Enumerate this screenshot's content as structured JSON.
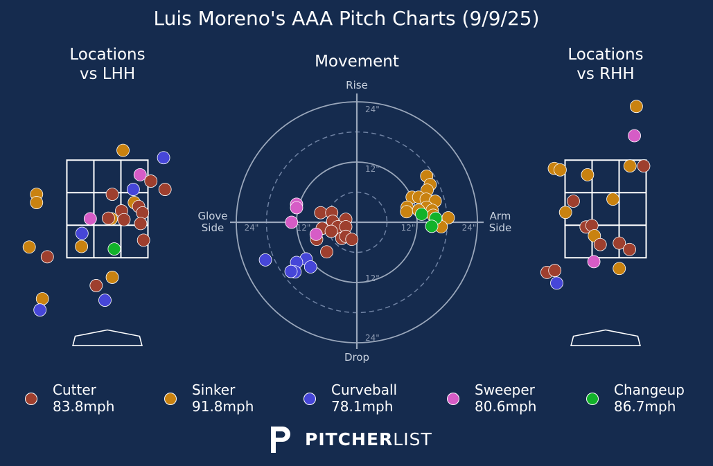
{
  "title": "Luis Moreno's AAA Pitch Charts (9/9/25)",
  "panels": {
    "lhh_title": "Locations\nvs LHH",
    "movement_title": "Movement",
    "rhh_title": "Locations\nvs RHH"
  },
  "movement_axes": {
    "top": "Rise",
    "bottom": "Drop",
    "left": "Glove\nSide",
    "right": "Arm\nSide",
    "ring_ticks": [
      "12\"",
      "24\""
    ]
  },
  "colors": {
    "background": "#152b4e",
    "Cutter": "#9e3f2e",
    "Sinker": "#c98210",
    "Curveball": "#4646d8",
    "Sweeper": "#d65cc6",
    "Changeup": "#12b22a"
  },
  "legend": [
    {
      "pitch": "Cutter",
      "velo": "83.8mph"
    },
    {
      "pitch": "Sinker",
      "velo": "91.8mph"
    },
    {
      "pitch": "Curveball",
      "velo": "78.1mph"
    },
    {
      "pitch": "Sweeper",
      "velo": "80.6mph"
    },
    {
      "pitch": "Changeup",
      "velo": "86.7mph"
    }
  ],
  "logo": {
    "bold": "PITCHER",
    "light": "LIST"
  },
  "chart_data": [
    {
      "type": "scatter",
      "name": "Locations vs LHH",
      "xlabel": "",
      "ylabel": "",
      "xlim": [
        -2.8,
        2.2
      ],
      "ylim": [
        -0.5,
        5.0
      ],
      "units": "ft",
      "strike_zone": {
        "x": [
          -0.83,
          0.83
        ],
        "z": [
          1.5,
          3.5
        ]
      },
      "points": [
        {
          "type": "Sinker",
          "x": 0.32,
          "z": 3.7
        },
        {
          "type": "Curveball",
          "x": 1.15,
          "z": 3.55
        },
        {
          "type": "Sweeper",
          "x": 0.67,
          "z": 3.2
        },
        {
          "type": "Cutter",
          "x": 0.89,
          "z": 3.07
        },
        {
          "type": "Curveball",
          "x": 0.53,
          "z": 2.9
        },
        {
          "type": "Cutter",
          "x": 1.18,
          "z": 2.9
        },
        {
          "type": "Sinker",
          "x": -1.45,
          "z": 2.8
        },
        {
          "type": "Cutter",
          "x": 0.1,
          "z": 2.8
        },
        {
          "type": "Sinker",
          "x": -1.45,
          "z": 2.63
        },
        {
          "type": "Sinker",
          "x": 0.55,
          "z": 2.63
        },
        {
          "type": "Cutter",
          "x": 0.64,
          "z": 2.55
        },
        {
          "type": "Cutter",
          "x": 0.29,
          "z": 2.46
        },
        {
          "type": "Cutter",
          "x": 0.72,
          "z": 2.42
        },
        {
          "type": "Sinker",
          "x": 0.08,
          "z": 2.3
        },
        {
          "type": "Cutter",
          "x": 0.02,
          "z": 2.31
        },
        {
          "type": "Sweeper",
          "x": -0.35,
          "z": 2.3
        },
        {
          "type": "Cutter",
          "x": 0.34,
          "z": 2.28
        },
        {
          "type": "Cutter",
          "x": 0.68,
          "z": 2.2
        },
        {
          "type": "Curveball",
          "x": -0.52,
          "z": 2.0
        },
        {
          "type": "Cutter",
          "x": 0.74,
          "z": 1.86
        },
        {
          "type": "Sinker",
          "x": -0.53,
          "z": 1.73
        },
        {
          "type": "Changeup",
          "x": 0.14,
          "z": 1.68
        },
        {
          "type": "Sinker",
          "x": -1.6,
          "z": 1.72
        },
        {
          "type": "Cutter",
          "x": -1.23,
          "z": 1.52
        },
        {
          "type": "Sinker",
          "x": 0.1,
          "z": 1.1
        },
        {
          "type": "Cutter",
          "x": -0.23,
          "z": 0.93
        },
        {
          "type": "Sinker",
          "x": -1.33,
          "z": 0.66
        },
        {
          "type": "Curveball",
          "x": -0.05,
          "z": 0.63
        },
        {
          "type": "Curveball",
          "x": -1.38,
          "z": 0.43
        }
      ]
    },
    {
      "type": "scatter",
      "name": "Movement",
      "xlabel": "Glove Side / Arm Side",
      "ylabel": "Drop / Rise",
      "units": "inches",
      "xlim": [
        -24,
        24
      ],
      "ylim": [
        -24,
        24
      ],
      "rings": [
        6,
        12,
        18,
        24
      ],
      "points": [
        {
          "type": "Sinker",
          "x": 13.9,
          "y": 9.2
        },
        {
          "type": "Sinker",
          "x": 14.6,
          "y": 7.5
        },
        {
          "type": "Sinker",
          "x": 14.0,
          "y": 6.4
        },
        {
          "type": "Sinker",
          "x": 11.0,
          "y": 5.0
        },
        {
          "type": "Sinker",
          "x": 12.3,
          "y": 5.0
        },
        {
          "type": "Sinker",
          "x": 13.8,
          "y": 4.6
        },
        {
          "type": "Sinker",
          "x": 15.6,
          "y": 4.2
        },
        {
          "type": "Sinker",
          "x": 10.0,
          "y": 3.0
        },
        {
          "type": "Sinker",
          "x": 13.9,
          "y": 3.0
        },
        {
          "type": "Sinker",
          "x": 15.0,
          "y": 2.4
        },
        {
          "type": "Sinker",
          "x": 9.9,
          "y": 2.1
        },
        {
          "type": "Sinker",
          "x": 12.3,
          "y": 2.4
        },
        {
          "type": "Sinker",
          "x": 15.2,
          "y": 1.4
        },
        {
          "type": "Sinker",
          "x": 18.2,
          "y": 0.9
        },
        {
          "type": "Sinker",
          "x": 16.8,
          "y": -0.9
        },
        {
          "type": "Changeup",
          "x": 12.9,
          "y": 1.6
        },
        {
          "type": "Changeup",
          "x": 15.7,
          "y": 0.8
        },
        {
          "type": "Changeup",
          "x": 14.9,
          "y": -0.8
        },
        {
          "type": "Cutter",
          "x": -7.2,
          "y": 1.9
        },
        {
          "type": "Cutter",
          "x": -5.0,
          "y": 1.9
        },
        {
          "type": "Cutter",
          "x": -4.8,
          "y": 0.2
        },
        {
          "type": "Cutter",
          "x": -2.2,
          "y": 0.6
        },
        {
          "type": "Cutter",
          "x": -6.9,
          "y": -1.2
        },
        {
          "type": "Cutter",
          "x": -3.8,
          "y": -0.9
        },
        {
          "type": "Cutter",
          "x": -2.2,
          "y": -0.9
        },
        {
          "type": "Cutter",
          "x": -5.1,
          "y": -1.8
        },
        {
          "type": "Cutter",
          "x": -8.0,
          "y": -3.4
        },
        {
          "type": "Cutter",
          "x": -3.0,
          "y": -3.2
        },
        {
          "type": "Cutter",
          "x": -2.2,
          "y": -2.8
        },
        {
          "type": "Cutter",
          "x": -1.0,
          "y": -3.4
        },
        {
          "type": "Cutter",
          "x": -6.0,
          "y": -5.9
        },
        {
          "type": "Sweeper",
          "x": -12.0,
          "y": 3.6
        },
        {
          "type": "Sweeper",
          "x": -12.0,
          "y": 2.9
        },
        {
          "type": "Sweeper",
          "x": -13.0,
          "y": 0.0
        },
        {
          "type": "Sweeper",
          "x": -8.1,
          "y": -2.4
        },
        {
          "type": "Curveball",
          "x": -18.2,
          "y": -7.5
        },
        {
          "type": "Curveball",
          "x": -10.1,
          "y": -7.3
        },
        {
          "type": "Curveball",
          "x": -12.0,
          "y": -8.0
        },
        {
          "type": "Curveball",
          "x": -9.2,
          "y": -8.9
        },
        {
          "type": "Curveball",
          "x": -12.3,
          "y": -9.9
        },
        {
          "type": "Curveball",
          "x": -13.1,
          "y": -9.8
        }
      ]
    },
    {
      "type": "scatter",
      "name": "Locations vs RHH",
      "xlabel": "",
      "ylabel": "",
      "xlim": [
        -2.2,
        2.8
      ],
      "ylim": [
        -0.5,
        5.0
      ],
      "units": "ft",
      "strike_zone": {
        "x": [
          -0.83,
          0.83
        ],
        "z": [
          1.5,
          3.5
        ]
      },
      "points": [
        {
          "type": "Sinker",
          "x": 0.63,
          "z": 4.6
        },
        {
          "type": "Sweeper",
          "x": 0.59,
          "z": 4.0
        },
        {
          "type": "Cutter",
          "x": 0.78,
          "z": 3.38
        },
        {
          "type": "Sinker",
          "x": 0.5,
          "z": 3.38
        },
        {
          "type": "Sinker",
          "x": -1.05,
          "z": 3.33
        },
        {
          "type": "Sinker",
          "x": -0.93,
          "z": 3.3
        },
        {
          "type": "Sinker",
          "x": -0.37,
          "z": 3.2
        },
        {
          "type": "Sinker",
          "x": 0.15,
          "z": 2.7
        },
        {
          "type": "Cutter",
          "x": -0.66,
          "z": 2.66
        },
        {
          "type": "Sinker",
          "x": -0.82,
          "z": 2.43
        },
        {
          "type": "Cutter",
          "x": -0.4,
          "z": 2.13
        },
        {
          "type": "Cutter",
          "x": -0.28,
          "z": 2.16
        },
        {
          "type": "Sinker",
          "x": -0.23,
          "z": 1.95
        },
        {
          "type": "Cutter",
          "x": -0.11,
          "z": 1.77
        },
        {
          "type": "Cutter",
          "x": 0.28,
          "z": 1.8
        },
        {
          "type": "Cutter",
          "x": 0.49,
          "z": 1.67
        },
        {
          "type": "Sweeper",
          "x": -0.24,
          "z": 1.42
        },
        {
          "type": "Sinker",
          "x": 0.28,
          "z": 1.28
        },
        {
          "type": "Cutter",
          "x": -1.2,
          "z": 1.2
        },
        {
          "type": "Cutter",
          "x": -1.04,
          "z": 1.24
        },
        {
          "type": "Curveball",
          "x": -1.0,
          "z": 0.98
        }
      ]
    }
  ]
}
